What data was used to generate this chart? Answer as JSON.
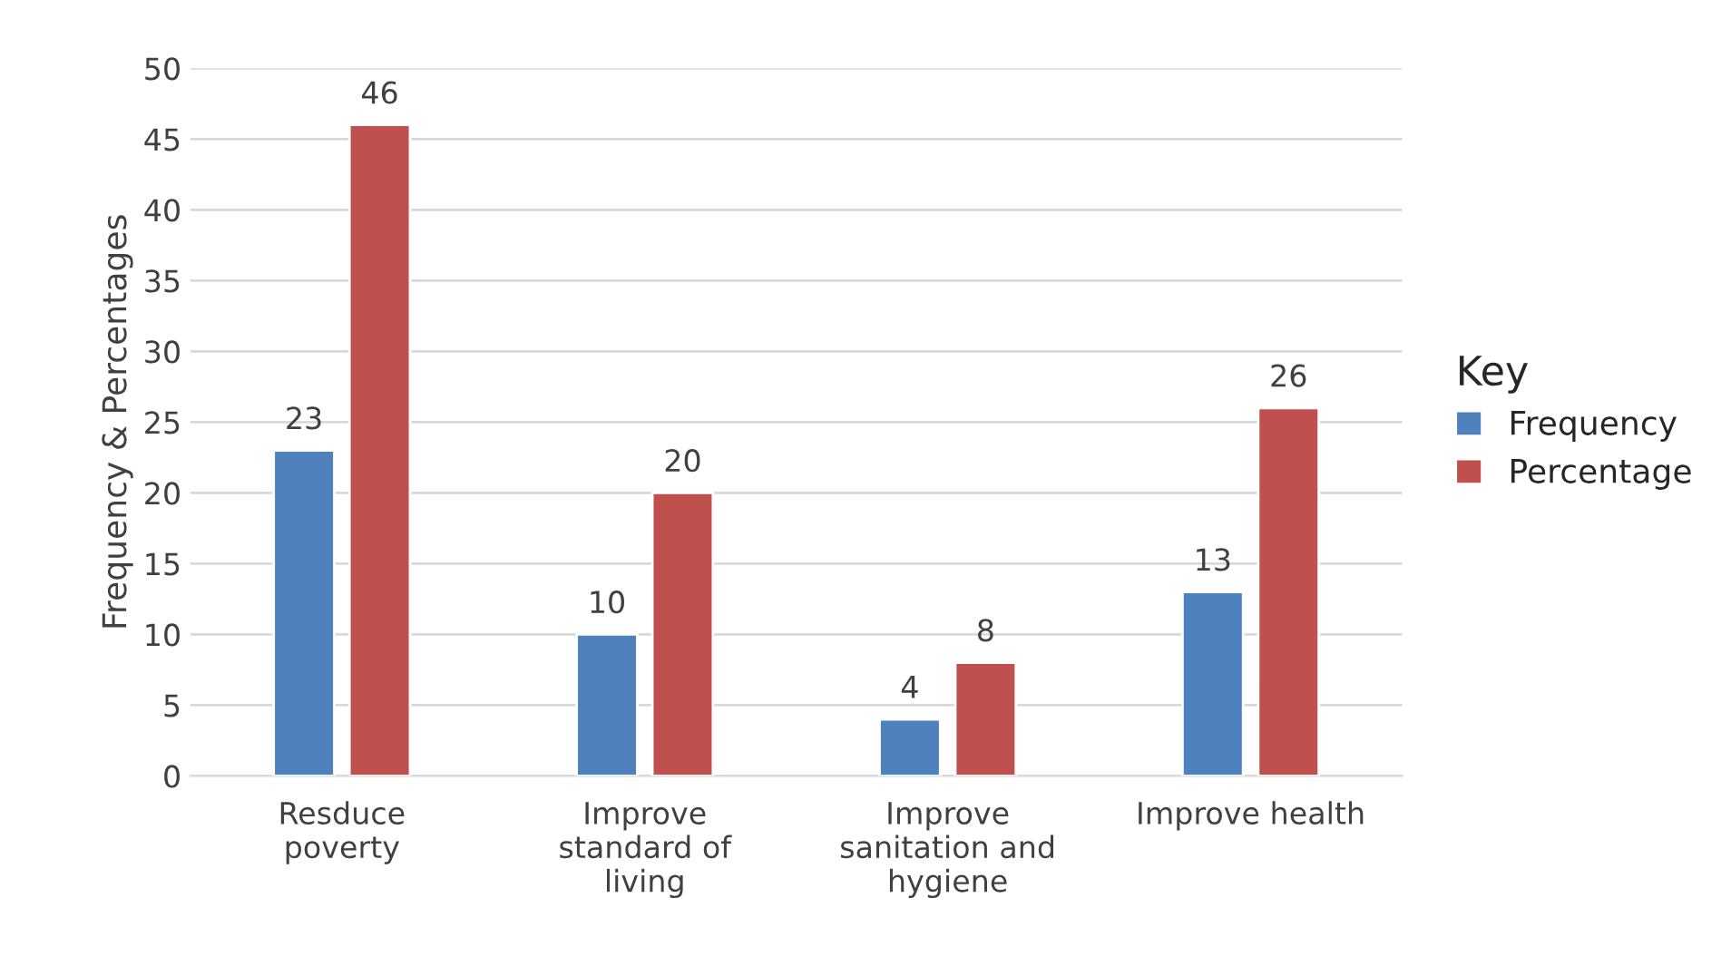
{
  "chart_data": {
    "type": "bar",
    "ylabel": "Frequency & Percentages",
    "legend_title": "Key",
    "categories": [
      "Resduce poverty",
      "Improve standard of living",
      "Improve sanitation and hygiene",
      "Improve health"
    ],
    "series": [
      {
        "name": "Frequency",
        "color": "#4f81bd",
        "values": [
          23,
          10,
          4,
          13
        ]
      },
      {
        "name": "Percentage",
        "color": "#c0504d",
        "values": [
          46,
          20,
          8,
          26
        ]
      }
    ],
    "ylim": [
      0,
      50
    ],
    "yticks": [
      0,
      5,
      10,
      15,
      20,
      25,
      30,
      35,
      40,
      45,
      50
    ],
    "grid": "y",
    "legend": "right",
    "data_labels": true
  }
}
